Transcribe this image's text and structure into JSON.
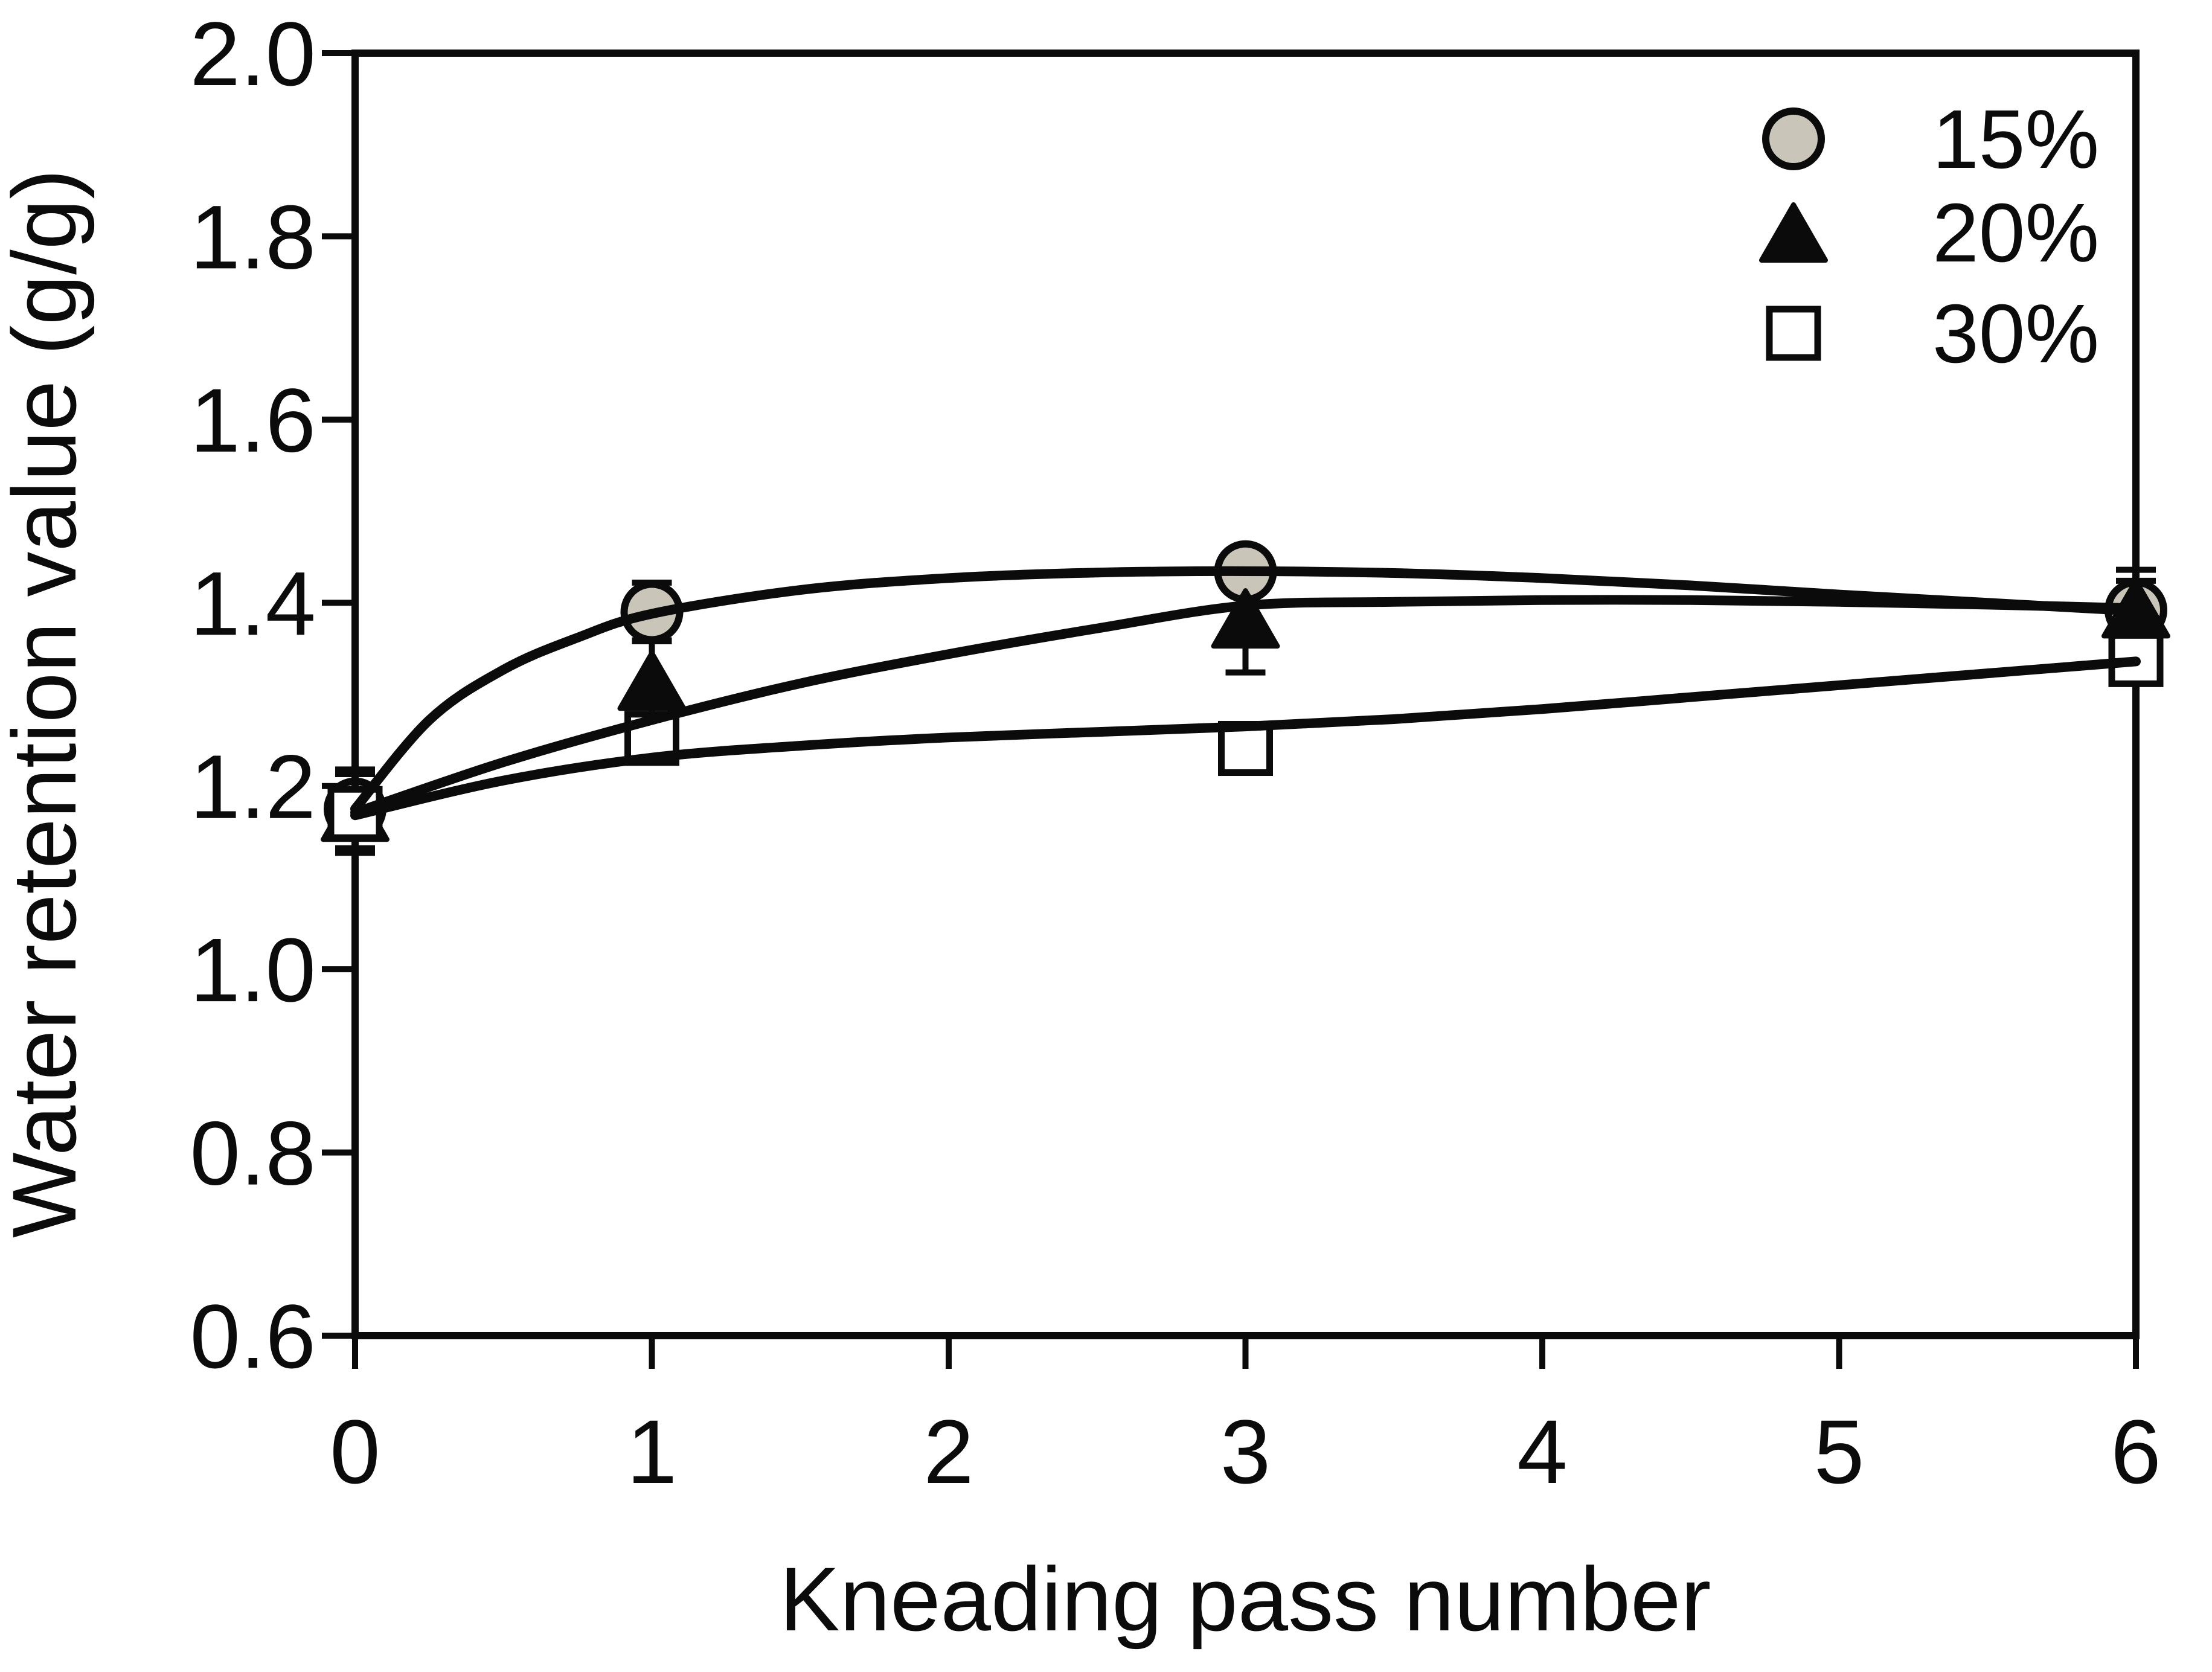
{
  "chart_data": {
    "type": "scatter",
    "title": "",
    "xlabel": "Kneading pass number",
    "ylabel": "Water retention value (g/g)",
    "xlim": [
      0,
      6
    ],
    "ylim": [
      0.6,
      2.0
    ],
    "x_ticks": [
      0,
      1,
      2,
      3,
      4,
      5,
      6
    ],
    "y_ticks": [
      2.0,
      1.8,
      1.6,
      1.4,
      1.2,
      1.0,
      0.8,
      0.6
    ],
    "y_tick_labels": [
      "2.0",
      "1.8",
      "1.6",
      "1.4",
      "1.2",
      "1.0",
      "0.8",
      "0.6"
    ],
    "grid": false,
    "frame": "box",
    "legend_position": "top-right",
    "colors": {
      "line": "#0b0b0b",
      "circle_fill": "#c9c6b9",
      "triangle_fill": "#0b0b0b",
      "square_fill": "#ffffff",
      "background": "#ffffff"
    },
    "series": [
      {
        "name": "15%",
        "marker": "circle",
        "x": [
          0,
          1,
          3,
          6
        ],
        "y": [
          1.175,
          1.39,
          1.434,
          1.392
        ],
        "yerr": [
          0.043,
          0.032,
          0.012,
          0.044
        ],
        "fit_curve": [
          [
            0,
            1.175
          ],
          [
            0.25,
            1.272
          ],
          [
            0.5,
            1.327
          ],
          [
            0.75,
            1.362
          ],
          [
            1,
            1.388
          ],
          [
            1.5,
            1.414
          ],
          [
            2,
            1.427
          ],
          [
            2.5,
            1.433
          ],
          [
            3,
            1.4345
          ],
          [
            3.5,
            1.4325
          ],
          [
            4,
            1.427
          ],
          [
            4.5,
            1.419
          ],
          [
            5,
            1.409
          ],
          [
            5.5,
            1.4
          ],
          [
            6,
            1.391
          ]
        ]
      },
      {
        "name": "20%",
        "marker": "triangle",
        "x": [
          0,
          1,
          3,
          6
        ],
        "y": [
          1.172,
          1.315,
          1.383,
          1.394
        ],
        "yerr": [
          0.043,
          0.044,
          0.059,
          0.03
        ],
        "fit_curve": [
          [
            0,
            1.171
          ],
          [
            0.5,
            1.226
          ],
          [
            1,
            1.272
          ],
          [
            1.5,
            1.312
          ],
          [
            2,
            1.344
          ],
          [
            2.5,
            1.372
          ],
          [
            3,
            1.397
          ],
          [
            3.5,
            1.401
          ],
          [
            4,
            1.403
          ],
          [
            4.5,
            1.403
          ],
          [
            5,
            1.401
          ],
          [
            5.5,
            1.398
          ],
          [
            6,
            1.394
          ]
        ]
      },
      {
        "name": "30%",
        "marker": "square",
        "x": [
          0,
          1,
          3,
          6
        ],
        "y": [
          1.17,
          1.252,
          1.241,
          1.338
        ],
        "yerr": [
          0.043,
          0.02,
          0.016,
          0.02
        ],
        "fit_curve": [
          [
            0,
            1.168
          ],
          [
            0.5,
            1.206
          ],
          [
            1,
            1.231
          ],
          [
            1.5,
            1.244
          ],
          [
            2,
            1.253
          ],
          [
            2.5,
            1.259
          ],
          [
            3,
            1.265
          ],
          [
            3.5,
            1.273
          ],
          [
            4,
            1.284
          ],
          [
            4.5,
            1.297
          ],
          [
            5,
            1.31
          ],
          [
            5.5,
            1.323
          ],
          [
            6,
            1.336
          ]
        ]
      }
    ],
    "legend": [
      {
        "label": "15%",
        "marker": "circle"
      },
      {
        "label": "20%",
        "marker": "triangle"
      },
      {
        "label": "30%",
        "marker": "square"
      }
    ]
  }
}
